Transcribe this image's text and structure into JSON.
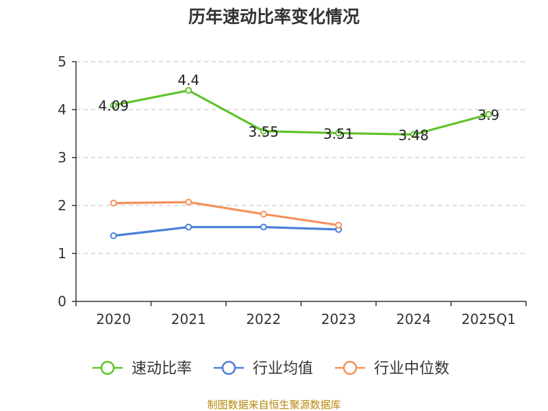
{
  "chart_data": {
    "type": "line",
    "title": "历年速动比率变化情况",
    "categories": [
      "2020",
      "2021",
      "2022",
      "2023",
      "2024",
      "2025Q1"
    ],
    "y_ticks": [
      "0",
      "1",
      "2",
      "3",
      "4",
      "5"
    ],
    "ylim": [
      0,
      5
    ],
    "grid": true,
    "legend_position": "bottom",
    "series": [
      {
        "name": "速动比率",
        "color": "#5fc32a",
        "values": [
          4.09,
          4.4,
          3.55,
          3.51,
          3.48,
          3.9
        ],
        "labels": [
          "4.09",
          "4.4",
          "3.55",
          "3.51",
          "3.48",
          "3.9"
        ],
        "show_labels": true
      },
      {
        "name": "行业均值",
        "color": "#4a7fd9",
        "values": [
          1.37,
          1.55,
          1.55,
          1.5,
          null,
          null
        ],
        "show_labels": false
      },
      {
        "name": "行业中位数",
        "color": "#f5905a",
        "values": [
          2.05,
          2.07,
          1.82,
          1.59,
          null,
          null
        ],
        "show_labels": false
      }
    ],
    "source": "制图数据来自恒生聚源数据库"
  }
}
